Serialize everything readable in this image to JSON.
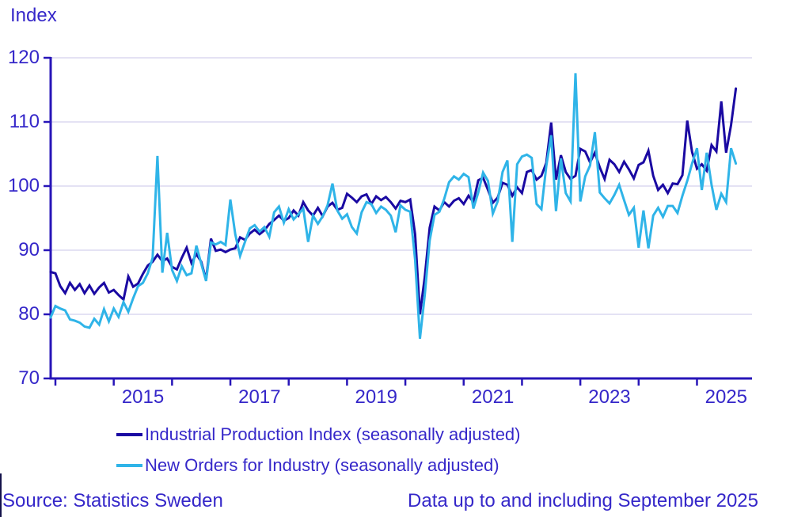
{
  "page": {
    "index_label": "Index",
    "source": "Source: Statistics Sweden",
    "data_note": "Data up to and including September 2025"
  },
  "colors": {
    "text": "#3527c9",
    "axis": "#2715b8",
    "grid": "#dbd8f0",
    "ipi_line": "#1a09a2",
    "orders_line": "#2fb4e8",
    "cursor_artifact": "#14124a"
  },
  "chart_data": {
    "type": "line",
    "title": "Index",
    "ylabel": "Index",
    "xlabel": "",
    "ylim": [
      70,
      120
    ],
    "y_ticks": [
      70,
      80,
      90,
      100,
      110,
      120
    ],
    "x_ticks": [
      2014,
      2015,
      2016,
      2017,
      2018,
      2019,
      2020,
      2021,
      2022,
      2023,
      2024,
      2025
    ],
    "x_labeled": [
      2015,
      2017,
      2019,
      2021,
      2023,
      2025
    ],
    "frequency": "monthly",
    "x_start": "2013-12",
    "x_end": "2025-09",
    "grid": "horizontal",
    "legend_position": "bottom",
    "series": [
      {
        "name": "Industrial Production Index (seasonally adjusted)",
        "color": "#1a09a2",
        "values": [
          86.6,
          86.4,
          84.4,
          83.3,
          84.9,
          83.8,
          84.7,
          83.3,
          84.5,
          83.2,
          84.2,
          84.9,
          83.4,
          83.8,
          83.0,
          82.3,
          85.9,
          84.3,
          84.8,
          86.3,
          87.6,
          88.2,
          89.3,
          88.3,
          88.7,
          87.4,
          87.0,
          88.8,
          90.4,
          88.0,
          89.4,
          88.2,
          85.4,
          91.8,
          89.9,
          90.1,
          89.7,
          90.1,
          90.3,
          92.0,
          91.6,
          92.6,
          93.2,
          92.5,
          93.1,
          94.1,
          94.7,
          95.4,
          94.6,
          95.0,
          96.2,
          95.4,
          97.5,
          96.2,
          95.4,
          96.6,
          95.3,
          96.8,
          97.4,
          96.3,
          96.6,
          98.8,
          98.2,
          97.5,
          98.4,
          98.7,
          97.2,
          98.4,
          97.8,
          98.3,
          97.5,
          96.5,
          97.7,
          97.5,
          97.9,
          92.5,
          80.0,
          85.8,
          93.5,
          96.8,
          96.2,
          97.5,
          96.8,
          97.7,
          98.1,
          97.2,
          98.5,
          97.5,
          100.9,
          101.3,
          99.4,
          97.4,
          98.2,
          100.5,
          100.2,
          98.5,
          99.8,
          98.9,
          102.2,
          102.5,
          101.0,
          101.6,
          103.6,
          109.9,
          101.0,
          104.8,
          102.2,
          101.1,
          101.6,
          105.8,
          105.4,
          103.7,
          105.2,
          102.9,
          101.1,
          104.1,
          103.4,
          102.2,
          103.8,
          102.6,
          101.2,
          103.3,
          103.7,
          105.5,
          101.6,
          99.4,
          100.2,
          98.9,
          100.4,
          100.3,
          101.7,
          110.2,
          105.3,
          102.7,
          103.4,
          102.4,
          106.4,
          105.4,
          113.2,
          105.2,
          109.5,
          115.2
        ]
      },
      {
        "name": "New Orders for Industry (seasonally adjusted)",
        "color": "#2fb4e8",
        "values": [
          79.5,
          81.3,
          80.9,
          80.6,
          79.2,
          79.0,
          78.7,
          78.1,
          77.9,
          79.3,
          78.4,
          80.8,
          78.9,
          80.9,
          79.6,
          81.9,
          80.4,
          82.5,
          84.4,
          84.9,
          86.4,
          88.8,
          104.7,
          86.5,
          92.7,
          86.9,
          85.2,
          87.5,
          86.1,
          86.4,
          90.7,
          87.9,
          85.2,
          91.2,
          90.9,
          91.3,
          90.8,
          97.9,
          92.5,
          89.1,
          91.3,
          93.4,
          93.9,
          92.9,
          93.6,
          92.1,
          95.9,
          96.8,
          94.3,
          96.4,
          94.8,
          95.6,
          96.5,
          91.3,
          95.4,
          94.1,
          95.3,
          97.0,
          100.4,
          96.2,
          94.9,
          95.6,
          93.6,
          92.6,
          95.9,
          97.5,
          97.2,
          95.8,
          96.8,
          96.3,
          95.4,
          92.8,
          97.0,
          96.3,
          96.0,
          88.5,
          76.2,
          83.0,
          91.5,
          95.5,
          96.0,
          98.0,
          100.6,
          101.5,
          101.0,
          101.9,
          101.4,
          96.5,
          99.0,
          102.1,
          100.8,
          95.7,
          97.6,
          102.2,
          104.0,
          91.3,
          103.4,
          104.6,
          104.9,
          104.4,
          97.2,
          96.4,
          103.1,
          107.9,
          96.1,
          104.3,
          98.9,
          97.6,
          117.6,
          97.6,
          101.5,
          103.2,
          108.4,
          99.0,
          98.1,
          97.3,
          98.6,
          100.2,
          97.8,
          95.5,
          96.6,
          90.4,
          96.2,
          90.3,
          95.4,
          96.6,
          95.2,
          96.9,
          96.9,
          95.8,
          98.5,
          100.8,
          103.5,
          105.9,
          99.4,
          105.2,
          100.2,
          96.3,
          98.8,
          97.5,
          105.9,
          103.5
        ]
      }
    ]
  }
}
